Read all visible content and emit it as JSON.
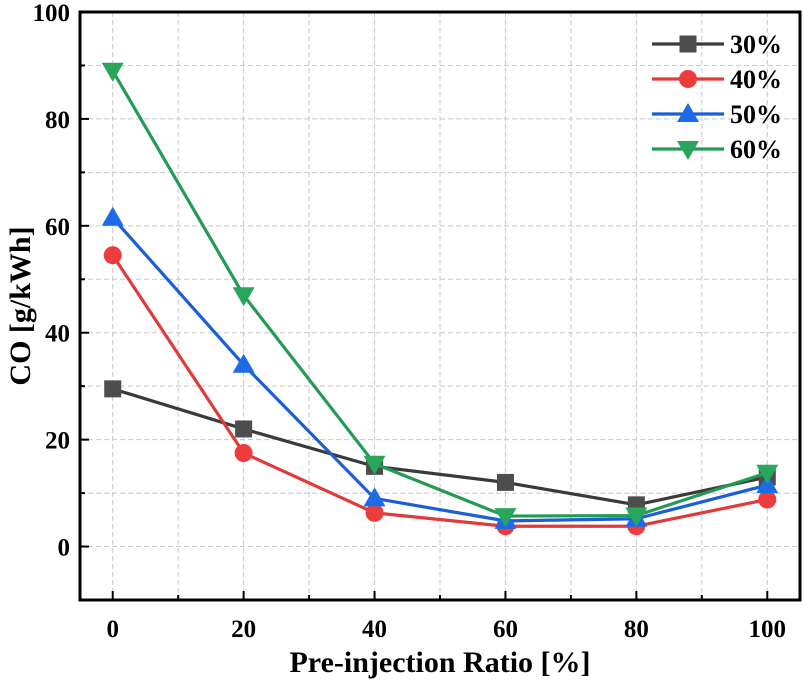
{
  "chart_data": {
    "type": "line",
    "title": "",
    "xlabel": "Pre-injection Ratio [%]",
    "ylabel": "CO [g/kWh]",
    "x": [
      0,
      20,
      40,
      60,
      80,
      100
    ],
    "xticks": [
      0,
      20,
      40,
      60,
      80,
      100
    ],
    "yticks": [
      0,
      20,
      40,
      60,
      80,
      100
    ],
    "xlim": [
      -5,
      105
    ],
    "ylim": [
      -10,
      100
    ],
    "grid": true,
    "legend_position": "top-right",
    "series": [
      {
        "name": "30%",
        "marker": "square",
        "line_color": "#3a3a3a",
        "marker_color": "#4d4d4d",
        "values": [
          29.5,
          22,
          15,
          12,
          7.8,
          13
        ]
      },
      {
        "name": "40%",
        "marker": "circle",
        "line_color": "#e03a3a",
        "marker_color": "#ee3b3b",
        "values": [
          54.5,
          17.5,
          6.3,
          3.8,
          3.8,
          8.8
        ]
      },
      {
        "name": "50%",
        "marker": "triangle-up",
        "line_color": "#1a5fd6",
        "marker_color": "#1e6be8",
        "values": [
          61.5,
          34,
          9,
          4.8,
          5.2,
          11.5
        ]
      },
      {
        "name": "60%",
        "marker": "triangle-down",
        "line_color": "#249a55",
        "marker_color": "#2aa65c",
        "values": [
          89,
          47,
          15.5,
          5.7,
          5.8,
          13.8
        ]
      }
    ]
  }
}
